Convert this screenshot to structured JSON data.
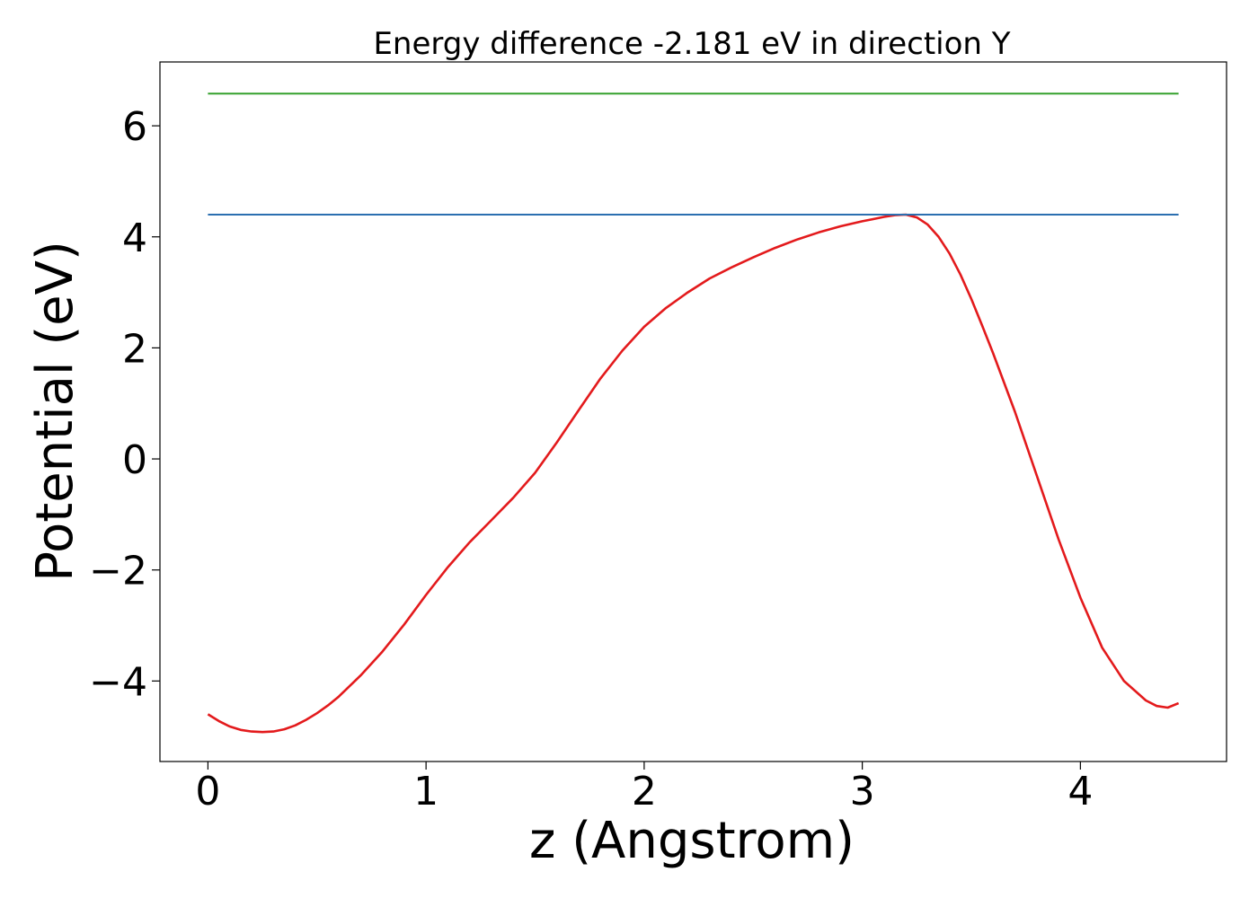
{
  "chart_data": {
    "type": "line",
    "title": "Energy difference -2.181 eV in direction Y",
    "xlabel": "z (Angstrom)",
    "ylabel": "Potential (eV)",
    "xlim": [
      -0.22,
      4.67
    ],
    "ylim": [
      -5.45,
      7.15
    ],
    "xticks": [
      0,
      1,
      2,
      3,
      4
    ],
    "yticks": [
      -4,
      -2,
      0,
      2,
      4,
      6
    ],
    "xtick_labels": [
      "0",
      "1",
      "2",
      "3",
      "4"
    ],
    "ytick_labels": [
      "−4",
      "−2",
      "0",
      "2",
      "4",
      "6"
    ],
    "grid": false,
    "series": [
      {
        "color": "#e31a1c",
        "x": [
          0,
          0.05,
          0.1,
          0.15,
          0.2,
          0.25,
          0.3,
          0.35,
          0.4,
          0.45,
          0.5,
          0.55,
          0.6,
          0.7,
          0.8,
          0.9,
          1.0,
          1.1,
          1.2,
          1.3,
          1.4,
          1.5,
          1.6,
          1.7,
          1.8,
          1.9,
          2.0,
          2.1,
          2.2,
          2.3,
          2.4,
          2.5,
          2.6,
          2.7,
          2.8,
          2.9,
          3.0,
          3.05,
          3.1,
          3.15,
          3.2,
          3.25,
          3.3,
          3.35,
          3.4,
          3.45,
          3.5,
          3.55,
          3.6,
          3.7,
          3.8,
          3.9,
          4.0,
          4.1,
          4.2,
          4.3,
          4.35,
          4.4,
          4.45
        ],
        "y": [
          -4.6,
          -4.72,
          -4.82,
          -4.88,
          -4.91,
          -4.92,
          -4.91,
          -4.87,
          -4.8,
          -4.7,
          -4.58,
          -4.44,
          -4.28,
          -3.9,
          -3.47,
          -2.98,
          -2.45,
          -1.95,
          -1.5,
          -1.1,
          -0.7,
          -0.25,
          0.3,
          0.88,
          1.45,
          1.95,
          2.38,
          2.72,
          3.0,
          3.25,
          3.45,
          3.63,
          3.8,
          3.95,
          4.08,
          4.19,
          4.28,
          4.32,
          4.36,
          4.39,
          4.4,
          4.35,
          4.22,
          4.0,
          3.7,
          3.32,
          2.88,
          2.4,
          1.9,
          0.85,
          -0.3,
          -1.45,
          -2.5,
          -3.4,
          -4.0,
          -4.35,
          -4.45,
          -4.48,
          -4.4
        ]
      },
      {
        "color": "#2b6fb0",
        "x": [
          0,
          4.45
        ],
        "y": [
          4.4,
          4.4
        ]
      },
      {
        "color": "#33a02c",
        "x": [
          0,
          4.45
        ],
        "y": [
          6.58,
          6.58
        ]
      }
    ]
  }
}
